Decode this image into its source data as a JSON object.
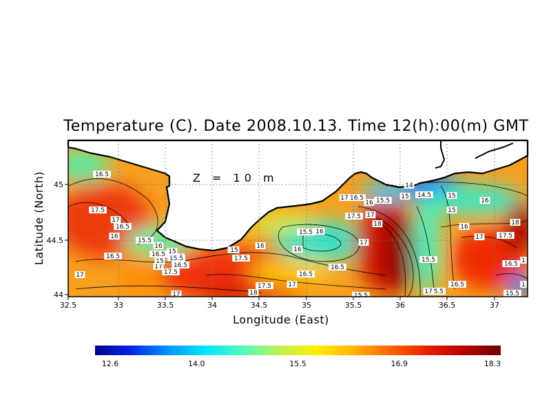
{
  "title": "Temperature (C). Date 2008.10.13. Time 12(h):00(m) GMT",
  "depth_label": "Z = 10 m",
  "xlabel": "Longitude (East)",
  "ylabel": "Latitude (North)",
  "x_ticks": [
    "32.5",
    "33",
    "33.5",
    "34",
    "34.5",
    "35",
    "35.5",
    "36",
    "36.5",
    "37"
  ],
  "y_ticks": [
    "45",
    "44.5",
    "44"
  ],
  "colorbar": {
    "ticks": [
      "12.6",
      "14.0",
      "15.5",
      "16.9",
      "18.3"
    ],
    "min": 12.6,
    "max": 18.3,
    "colors": [
      "#00008c",
      "#0028e6",
      "#0096ff",
      "#00e6ff",
      "#50fabe",
      "#bef050",
      "#fff000",
      "#ffb400",
      "#ff6400",
      "#eb1e00",
      "#b40000",
      "#6e0000"
    ]
  },
  "map": {
    "lon_range": [
      32.5,
      37.3
    ],
    "lat_range": [
      44.0,
      45.35
    ],
    "land_color": "#ffffff"
  },
  "contour_labels": [
    "16.5",
    "17.5",
    "17",
    "16.5",
    "16",
    "15.5",
    "16",
    "16.5",
    "17",
    "17.5",
    "15",
    "15.5",
    "16.5",
    "16",
    "17",
    "17.5",
    "17",
    "17.5",
    "16",
    "15",
    "16",
    "15.5",
    "16.5",
    "16",
    "16.5",
    "17",
    "18",
    "17.5",
    "16.5",
    "17",
    "17",
    "17",
    "16.5",
    "16",
    "15.5",
    "15",
    "14.5",
    "15",
    "15",
    "14",
    "15",
    "15.5",
    "16",
    "16",
    "17",
    "17.5",
    "18",
    "15.5",
    "16.5",
    "15.5",
    "16.5",
    "17",
    "1",
    "15.5",
    "1",
    "17",
    "18",
    "15",
    "15.5"
  ]
}
